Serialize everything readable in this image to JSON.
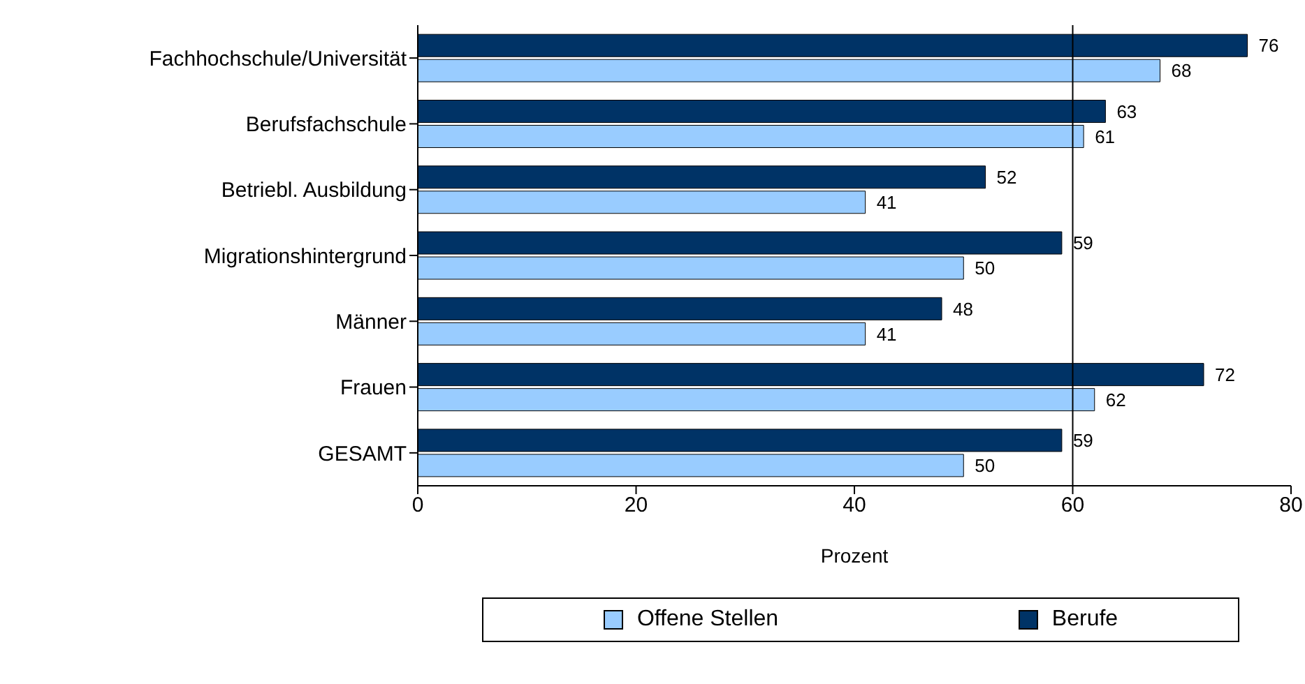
{
  "chart_data": {
    "type": "bar",
    "orientation": "horizontal",
    "xlabel": "Prozent",
    "categories": [
      "Fachhochschule/Universität",
      "Berufsfachschule",
      "Betriebl. Ausbildung",
      "Migrationshintergrund",
      "Männer",
      "Frauen",
      "GESAMT"
    ],
    "series": [
      {
        "name": "Offene Stellen",
        "color": "#99ccff",
        "values": [
          68,
          61,
          41,
          50,
          41,
          62,
          50
        ]
      },
      {
        "name": "Berufe",
        "color": "#003366",
        "values": [
          76,
          63,
          52,
          59,
          48,
          72,
          59
        ]
      }
    ],
    "xlim": [
      0,
      80
    ],
    "xticks": [
      0,
      20,
      40,
      60,
      80
    ],
    "data_labels": true,
    "grid": false,
    "legend": "bottom",
    "ref_lines": [
      {
        "axis": "x",
        "value": 60,
        "color": "#000000"
      }
    ]
  }
}
